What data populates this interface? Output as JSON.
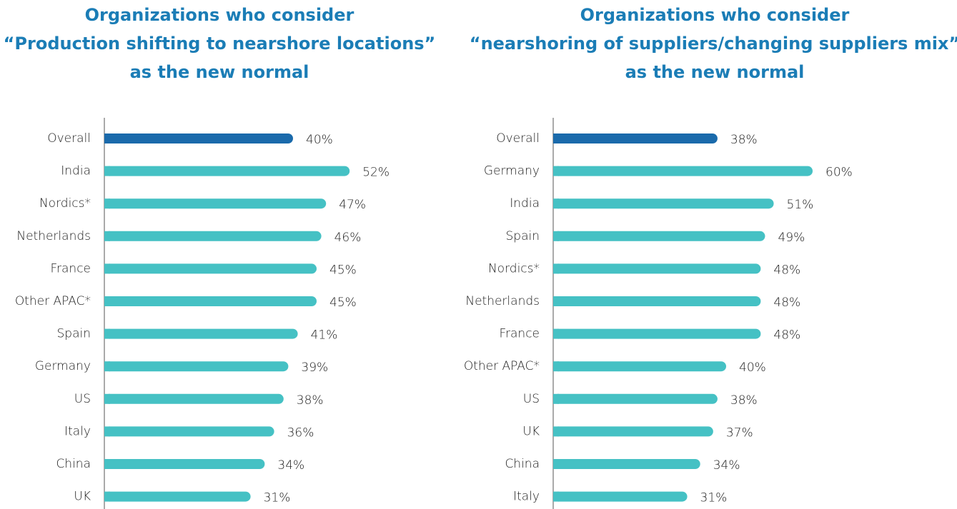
{
  "chart_data": [
    {
      "type": "bar",
      "orientation": "horizontal",
      "title": [
        "Organizations who consider",
        "“Production shifting to nearshore locations”",
        "as the new normal"
      ],
      "categories": [
        "Overall",
        "India",
        "Nordics*",
        "Netherlands",
        "France",
        "Other APAC*",
        "Spain",
        "Germany",
        "US",
        "Italy",
        "China",
        "UK"
      ],
      "values": [
        40,
        52,
        47,
        46,
        45,
        45,
        41,
        39,
        38,
        36,
        34,
        31
      ],
      "value_labels": [
        "40%",
        "52%",
        "47%",
        "46%",
        "45%",
        "45%",
        "41%",
        "39%",
        "38%",
        "36%",
        "34%",
        "31%"
      ],
      "colors": [
        "#1a6aab",
        "#45c1c4",
        "#45c1c4",
        "#45c1c4",
        "#45c1c4",
        "#45c1c4",
        "#45c1c4",
        "#45c1c4",
        "#45c1c4",
        "#45c1c4",
        "#45c1c4",
        "#45c1c4"
      ],
      "xlim": [
        0,
        100
      ]
    },
    {
      "type": "bar",
      "orientation": "horizontal",
      "title": [
        "Organizations who consider",
        "“nearshoring of suppliers/changing suppliers mix”",
        "as the new normal"
      ],
      "categories": [
        "Overall",
        "Germany",
        "India",
        "Spain",
        "Nordics*",
        "Netherlands",
        "France",
        "Other APAC*",
        "US",
        "UK",
        "China",
        "Italy"
      ],
      "values": [
        38,
        60,
        51,
        49,
        48,
        48,
        48,
        40,
        38,
        37,
        34,
        31
      ],
      "value_labels": [
        "38%",
        "60%",
        "51%",
        "49%",
        "48%",
        "48%",
        "48%",
        "40%",
        "38%",
        "37%",
        "34%",
        "31%"
      ],
      "colors": [
        "#1a6aab",
        "#45c1c4",
        "#45c1c4",
        "#45c1c4",
        "#45c1c4",
        "#45c1c4",
        "#45c1c4",
        "#45c1c4",
        "#45c1c4",
        "#45c1c4",
        "#45c1c4",
        "#45c1c4"
      ],
      "xlim": [
        0,
        100
      ]
    }
  ]
}
